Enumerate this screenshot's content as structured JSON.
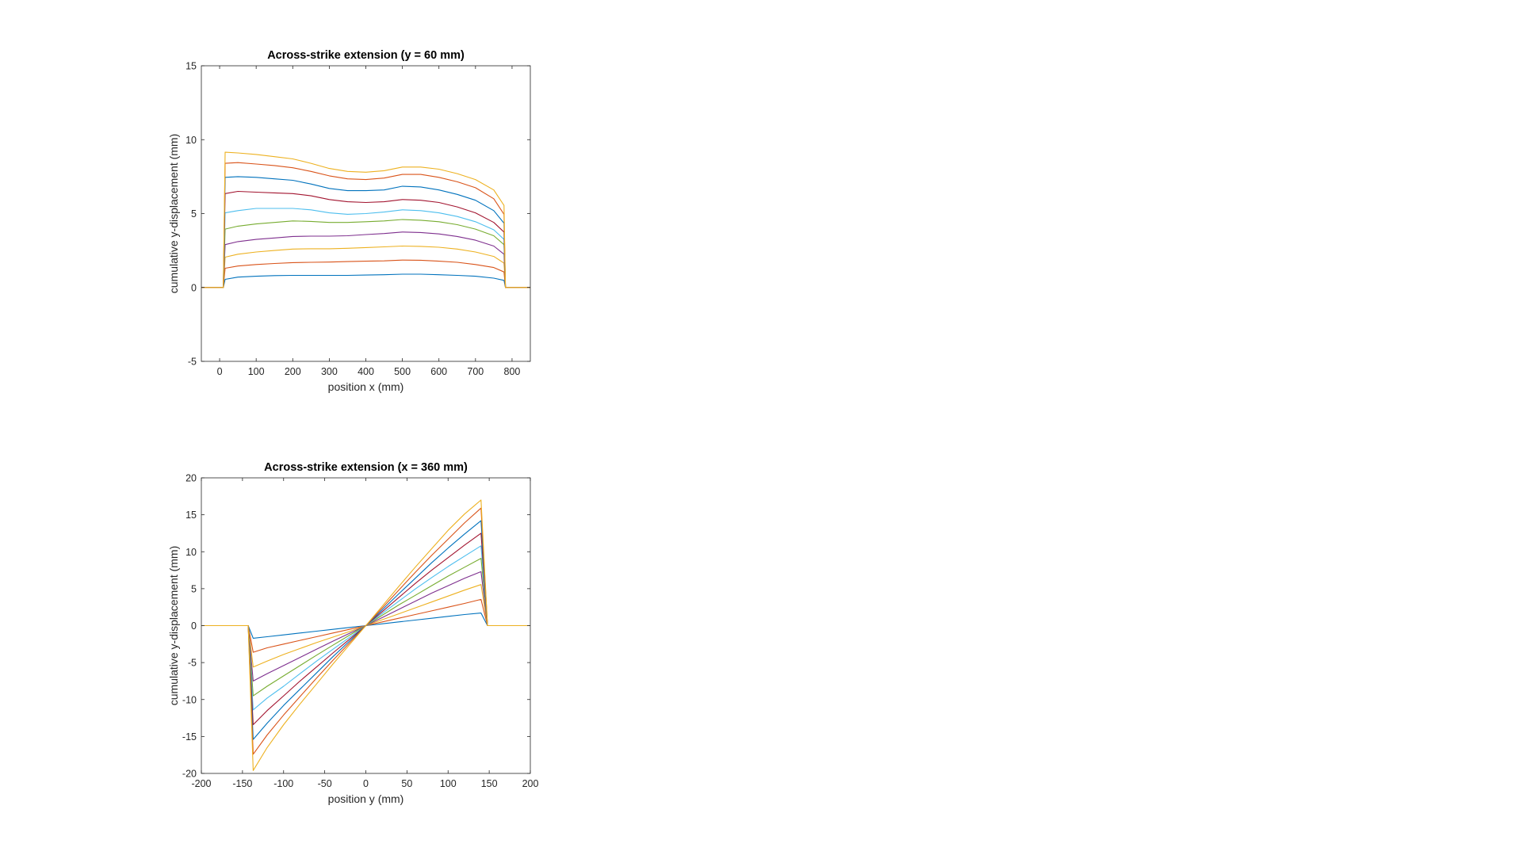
{
  "colors": [
    "#0072BD",
    "#D95319",
    "#EDB120",
    "#7E2F8E",
    "#77AC30",
    "#4DBEEE",
    "#A2142F"
  ],
  "chart_data": [
    {
      "type": "line",
      "title": "Across-strike extension (y = 60 mm)",
      "xlabel": "position x (mm)",
      "ylabel": "cumulative y-displacement (mm)",
      "xlim": [
        -50,
        850
      ],
      "ylim": [
        -5,
        15
      ],
      "xticks": [
        0,
        100,
        200,
        300,
        400,
        500,
        600,
        700,
        800
      ],
      "yticks": [
        -5,
        0,
        5,
        10,
        15
      ],
      "grid": false,
      "x": [
        -50,
        10,
        15,
        50,
        100,
        150,
        200,
        250,
        300,
        350,
        400,
        450,
        500,
        550,
        600,
        650,
        700,
        750,
        778,
        782,
        850
      ],
      "series": [
        {
          "values": [
            0,
            0,
            0.55,
            0.7,
            0.76,
            0.8,
            0.82,
            0.82,
            0.82,
            0.82,
            0.84,
            0.86,
            0.9,
            0.9,
            0.86,
            0.82,
            0.76,
            0.63,
            0.48,
            0,
            0
          ]
        },
        {
          "values": [
            0,
            0,
            1.3,
            1.45,
            1.55,
            1.62,
            1.68,
            1.7,
            1.72,
            1.75,
            1.78,
            1.8,
            1.85,
            1.84,
            1.78,
            1.7,
            1.55,
            1.35,
            1.05,
            0,
            0
          ]
        },
        {
          "values": [
            0,
            0,
            2.05,
            2.25,
            2.4,
            2.5,
            2.6,
            2.62,
            2.62,
            2.65,
            2.7,
            2.75,
            2.8,
            2.78,
            2.72,
            2.6,
            2.4,
            2.1,
            1.65,
            0,
            0
          ]
        },
        {
          "values": [
            0,
            0,
            2.9,
            3.1,
            3.25,
            3.35,
            3.45,
            3.47,
            3.47,
            3.5,
            3.58,
            3.65,
            3.75,
            3.72,
            3.62,
            3.45,
            3.2,
            2.8,
            2.25,
            0,
            0
          ]
        },
        {
          "values": [
            0,
            0,
            3.95,
            4.15,
            4.3,
            4.4,
            4.5,
            4.47,
            4.4,
            4.4,
            4.45,
            4.5,
            4.6,
            4.55,
            4.45,
            4.25,
            3.95,
            3.5,
            2.9,
            0,
            0
          ]
        },
        {
          "values": [
            0,
            0,
            5.05,
            5.2,
            5.35,
            5.35,
            5.35,
            5.25,
            5.05,
            4.95,
            5.0,
            5.1,
            5.25,
            5.2,
            5.05,
            4.8,
            4.45,
            3.9,
            3.25,
            0,
            0
          ]
        },
        {
          "values": [
            0,
            0,
            6.35,
            6.5,
            6.45,
            6.4,
            6.35,
            6.2,
            5.95,
            5.8,
            5.75,
            5.8,
            5.95,
            5.9,
            5.75,
            5.45,
            5.05,
            4.4,
            3.75,
            0,
            0
          ]
        },
        {
          "values": [
            0,
            0,
            7.45,
            7.5,
            7.45,
            7.35,
            7.25,
            7.0,
            6.7,
            6.55,
            6.55,
            6.6,
            6.85,
            6.8,
            6.6,
            6.3,
            5.9,
            5.2,
            4.35,
            0,
            0
          ]
        },
        {
          "values": [
            0,
            0,
            8.4,
            8.45,
            8.35,
            8.25,
            8.1,
            7.85,
            7.55,
            7.35,
            7.3,
            7.4,
            7.65,
            7.65,
            7.45,
            7.15,
            6.75,
            6.0,
            4.95,
            0,
            0
          ]
        },
        {
          "values": [
            0,
            0,
            9.15,
            9.1,
            9.0,
            8.85,
            8.7,
            8.4,
            8.05,
            7.85,
            7.8,
            7.9,
            8.15,
            8.15,
            8.0,
            7.7,
            7.3,
            6.6,
            5.55,
            0,
            0
          ]
        }
      ]
    },
    {
      "type": "line",
      "title": "Across-strike extension (x = 360 mm)",
      "xlabel": "position y (mm)",
      "ylabel": "cumulative y-displacement (mm)",
      "xlim": [
        -200,
        200
      ],
      "ylim": [
        -20,
        20
      ],
      "xticks": [
        -200,
        -150,
        -100,
        -50,
        0,
        50,
        100,
        150,
        200
      ],
      "yticks": [
        -20,
        -15,
        -10,
        -5,
        0,
        5,
        10,
        15,
        20
      ],
      "grid": false,
      "x": [
        -200,
        -143,
        -137,
        -120,
        -100,
        -80,
        -60,
        -40,
        -20,
        0,
        20,
        40,
        60,
        80,
        100,
        120,
        140,
        148,
        200
      ],
      "series": [
        {
          "values": [
            0,
            0,
            -1.7,
            -1.5,
            -1.25,
            -1.0,
            -0.75,
            -0.5,
            -0.25,
            0,
            0.25,
            0.5,
            0.75,
            1.0,
            1.25,
            1.5,
            1.7,
            0,
            0
          ]
        },
        {
          "values": [
            0,
            0,
            -3.6,
            -3.0,
            -2.5,
            -2.0,
            -1.5,
            -1.0,
            -0.5,
            0,
            0.5,
            1.0,
            1.5,
            2.0,
            2.5,
            3.0,
            3.55,
            0,
            0
          ]
        },
        {
          "values": [
            0,
            0,
            -5.6,
            -4.8,
            -3.9,
            -3.1,
            -2.3,
            -1.55,
            -0.8,
            0,
            0.8,
            1.6,
            2.4,
            3.2,
            4.0,
            4.8,
            5.55,
            0,
            0
          ]
        },
        {
          "values": [
            0,
            0,
            -7.5,
            -6.5,
            -5.4,
            -4.3,
            -3.2,
            -2.1,
            -1.05,
            0,
            1.1,
            2.2,
            3.3,
            4.4,
            5.4,
            6.4,
            7.3,
            0,
            0
          ]
        },
        {
          "values": [
            0,
            0,
            -9.5,
            -8.2,
            -6.8,
            -5.4,
            -4.0,
            -2.65,
            -1.3,
            0,
            1.4,
            2.8,
            4.1,
            5.4,
            6.7,
            7.9,
            9.1,
            0,
            0
          ]
        },
        {
          "values": [
            0,
            0,
            -11.4,
            -9.8,
            -8.2,
            -6.5,
            -4.8,
            -3.2,
            -1.6,
            0,
            1.65,
            3.3,
            4.95,
            6.5,
            8.0,
            9.4,
            10.8,
            0,
            0
          ]
        },
        {
          "values": [
            0,
            0,
            -13.4,
            -11.5,
            -9.5,
            -7.5,
            -5.6,
            -3.7,
            -1.85,
            0,
            1.9,
            3.8,
            5.7,
            7.5,
            9.2,
            10.9,
            12.5,
            0,
            0
          ]
        },
        {
          "values": [
            0,
            0,
            -15.4,
            -13.2,
            -10.8,
            -8.6,
            -6.4,
            -4.2,
            -2.1,
            0,
            2.15,
            4.3,
            6.4,
            8.5,
            10.5,
            12.4,
            14.2,
            0,
            0
          ]
        },
        {
          "values": [
            0,
            0,
            -17.4,
            -14.8,
            -12.1,
            -9.6,
            -7.1,
            -4.7,
            -2.35,
            0,
            2.4,
            4.8,
            7.2,
            9.5,
            11.7,
            13.9,
            15.9,
            0,
            0
          ]
        },
        {
          "values": [
            0,
            0,
            -19.6,
            -16.5,
            -13.4,
            -10.6,
            -7.9,
            -5.2,
            -2.6,
            0,
            2.65,
            5.3,
            7.9,
            10.4,
            12.9,
            15.1,
            17.0,
            0,
            0
          ]
        }
      ]
    }
  ]
}
